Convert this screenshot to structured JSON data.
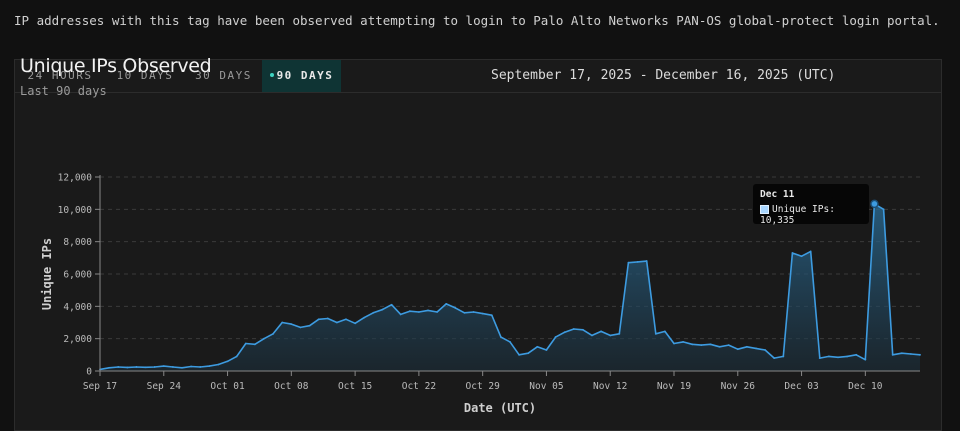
{
  "description": "IP addresses with this tag have been observed attempting to login to Palo Alto Networks PAN-OS global-protect login portal.",
  "tabs": [
    {
      "label": "24 HOURS",
      "active": false
    },
    {
      "label": "10 DAYS",
      "active": false
    },
    {
      "label": "30 DAYS",
      "active": false
    },
    {
      "label": "90 DAYS",
      "active": true
    }
  ],
  "date_range": "September 17, 2025 - December 16, 2025 (UTC)",
  "colors": {
    "line": "#3d9be0",
    "accent": "#3ed3c0",
    "active_tab_bg": "#0f3434"
  },
  "tooltip": {
    "title": "Dec 11",
    "series": "Unique IPs",
    "value": "10,335"
  },
  "chart_data": {
    "type": "area",
    "title": "Unique IPs Observed",
    "subtitle": "Last 90 days",
    "xlabel": "Date (UTC)",
    "ylabel": "Unique IPs",
    "ylim": [
      0,
      12000
    ],
    "yticks": [
      0,
      2000,
      4000,
      6000,
      8000,
      10000,
      12000
    ],
    "ytick_labels": [
      "0",
      "2,000",
      "4,000",
      "6,000",
      "8,000",
      "10,000",
      "12,000"
    ],
    "xtick_labels": [
      "Sep 17",
      "Sep 24",
      "Oct 01",
      "Oct 08",
      "Oct 15",
      "Oct 22",
      "Oct 29",
      "Nov 05",
      "Nov 12",
      "Nov 19",
      "Nov 26",
      "Dec 03",
      "Dec 10"
    ],
    "grid": true,
    "series": [
      {
        "name": "Unique IPs",
        "values": [
          100,
          200,
          250,
          220,
          250,
          230,
          250,
          300,
          250,
          200,
          280,
          250,
          300,
          400,
          600,
          900,
          1700,
          1650,
          2000,
          2300,
          3000,
          2900,
          2700,
          2800,
          3200,
          3250,
          3000,
          3200,
          2950,
          3300,
          3600,
          3800,
          4100,
          3500,
          3700,
          3650,
          3750,
          3650,
          4150,
          3900,
          3600,
          3650,
          3550,
          3450,
          2100,
          1800,
          1000,
          1100,
          1500,
          1300,
          2100,
          2400,
          2600,
          2550,
          2200,
          2450,
          2200,
          2300,
          6700,
          6750,
          6800,
          2300,
          2450,
          1700,
          1800,
          1650,
          1600,
          1650,
          1500,
          1600,
          1350,
          1500,
          1400,
          1300,
          800,
          900,
          7300,
          7100,
          7400,
          800,
          900,
          850,
          900,
          1000,
          700,
          10335,
          10000,
          1000,
          1100,
          1050,
          1000
        ]
      }
    ]
  }
}
